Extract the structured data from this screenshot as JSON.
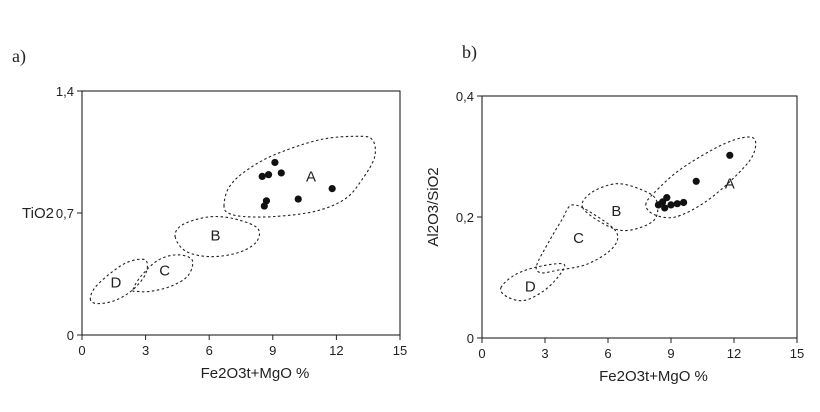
{
  "chart_data": [
    {
      "type": "scatter",
      "panel_label": "a)",
      "xlabel": "Fe2O3t+MgO  %",
      "ylabel": "TiO2",
      "xlim": [
        0,
        15
      ],
      "ylim": [
        0,
        1.4
      ],
      "xticks": [
        "0",
        "3",
        "6",
        "9",
        "12",
        "15"
      ],
      "yticks": [
        "0",
        "0,7",
        "1,4"
      ],
      "ytick_values": [
        0,
        0.7,
        1.4
      ],
      "grid": false,
      "points": [
        {
          "x": 8.5,
          "y": 0.91
        },
        {
          "x": 8.8,
          "y": 0.92
        },
        {
          "x": 9.1,
          "y": 0.99
        },
        {
          "x": 9.4,
          "y": 0.93
        },
        {
          "x": 8.6,
          "y": 0.74
        },
        {
          "x": 8.7,
          "y": 0.77
        },
        {
          "x": 10.2,
          "y": 0.78
        },
        {
          "x": 11.8,
          "y": 0.84
        }
      ],
      "regions": [
        {
          "label": "A",
          "label_at": [
            10.8,
            0.91
          ],
          "outline": [
            [
              6.7,
              0.74
            ],
            [
              6.9,
              0.84
            ],
            [
              7.6,
              0.93
            ],
            [
              9.0,
              1.03
            ],
            [
              11.2,
              1.12
            ],
            [
              13.0,
              1.14
            ],
            [
              13.7,
              1.12
            ],
            [
              13.8,
              1.02
            ],
            [
              13.2,
              0.89
            ],
            [
              12.4,
              0.78
            ],
            [
              11.0,
              0.71
            ],
            [
              9.1,
              0.68
            ],
            [
              7.6,
              0.68
            ],
            [
              6.9,
              0.7
            ]
          ]
        },
        {
          "label": "B",
          "label_at": [
            6.3,
            0.57
          ],
          "outline": [
            [
              4.4,
              0.56
            ],
            [
              4.6,
              0.62
            ],
            [
              5.3,
              0.66
            ],
            [
              6.3,
              0.68
            ],
            [
              7.4,
              0.66
            ],
            [
              8.3,
              0.61
            ],
            [
              8.2,
              0.53
            ],
            [
              7.3,
              0.47
            ],
            [
              6.0,
              0.45
            ],
            [
              4.9,
              0.48
            ]
          ]
        },
        {
          "label": "C",
          "label_at": [
            3.9,
            0.37
          ],
          "outline": [
            [
              2.4,
              0.26
            ],
            [
              2.8,
              0.34
            ],
            [
              3.6,
              0.43
            ],
            [
              4.5,
              0.46
            ],
            [
              5.2,
              0.43
            ],
            [
              5.0,
              0.34
            ],
            [
              4.2,
              0.28
            ],
            [
              3.2,
              0.25
            ],
            [
              2.6,
              0.25
            ]
          ]
        },
        {
          "label": "D",
          "label_at": [
            1.6,
            0.3
          ],
          "outline": [
            [
              0.4,
              0.2
            ],
            [
              0.6,
              0.27
            ],
            [
              1.4,
              0.36
            ],
            [
              2.2,
              0.42
            ],
            [
              3.0,
              0.43
            ],
            [
              3.0,
              0.35
            ],
            [
              2.4,
              0.26
            ],
            [
              1.6,
              0.2
            ],
            [
              0.8,
              0.18
            ]
          ]
        }
      ]
    },
    {
      "type": "scatter",
      "panel_label": "b)",
      "xlabel": "Fe2O3t+MgO  %",
      "ylabel": "Al2O3/SiO2",
      "xlim": [
        0,
        15
      ],
      "ylim": [
        0,
        0.4
      ],
      "xticks": [
        "0",
        "3",
        "6",
        "9",
        "12",
        "15"
      ],
      "yticks": [
        "0",
        "0,2",
        "0,4"
      ],
      "ytick_values": [
        0,
        0.2,
        0.4
      ],
      "grid": false,
      "points": [
        {
          "x": 8.4,
          "y": 0.22
        },
        {
          "x": 8.6,
          "y": 0.225
        },
        {
          "x": 8.7,
          "y": 0.215
        },
        {
          "x": 8.8,
          "y": 0.232
        },
        {
          "x": 9.0,
          "y": 0.22
        },
        {
          "x": 9.3,
          "y": 0.222
        },
        {
          "x": 9.6,
          "y": 0.224
        },
        {
          "x": 10.2,
          "y": 0.259
        },
        {
          "x": 11.8,
          "y": 0.302
        }
      ],
      "regions": [
        {
          "label": "A",
          "label_at": [
            11.8,
            0.255
          ],
          "outline": [
            [
              7.8,
              0.22
            ],
            [
              8.2,
              0.24
            ],
            [
              9.5,
              0.28
            ],
            [
              11.6,
              0.322
            ],
            [
              12.9,
              0.331
            ],
            [
              12.9,
              0.302
            ],
            [
              12.0,
              0.265
            ],
            [
              10.6,
              0.224
            ],
            [
              9.2,
              0.2
            ],
            [
              8.2,
              0.204
            ]
          ]
        },
        {
          "label": "B",
          "label_at": [
            6.4,
            0.21
          ],
          "outline": [
            [
              4.8,
              0.215
            ],
            [
              5.2,
              0.24
            ],
            [
              6.4,
              0.255
            ],
            [
              7.6,
              0.245
            ],
            [
              8.3,
              0.228
            ],
            [
              8.2,
              0.195
            ],
            [
              7.0,
              0.178
            ],
            [
              6.0,
              0.185
            ]
          ]
        },
        {
          "label": "C",
          "label_at": [
            4.6,
            0.165
          ],
          "outline": [
            [
              2.6,
              0.12
            ],
            [
              3.2,
              0.16
            ],
            [
              3.8,
              0.195
            ],
            [
              4.3,
              0.22
            ],
            [
              5.3,
              0.205
            ],
            [
              6.4,
              0.175
            ],
            [
              6.2,
              0.148
            ],
            [
              5.0,
              0.122
            ],
            [
              3.6,
              0.112
            ],
            [
              2.8,
              0.108
            ]
          ]
        },
        {
          "label": "D",
          "label_at": [
            2.3,
            0.085
          ],
          "outline": [
            [
              0.9,
              0.083
            ],
            [
              1.6,
              0.105
            ],
            [
              2.7,
              0.118
            ],
            [
              3.9,
              0.122
            ],
            [
              3.6,
              0.1
            ],
            [
              2.9,
              0.077
            ],
            [
              2.0,
              0.062
            ],
            [
              1.2,
              0.068
            ]
          ]
        }
      ]
    }
  ]
}
